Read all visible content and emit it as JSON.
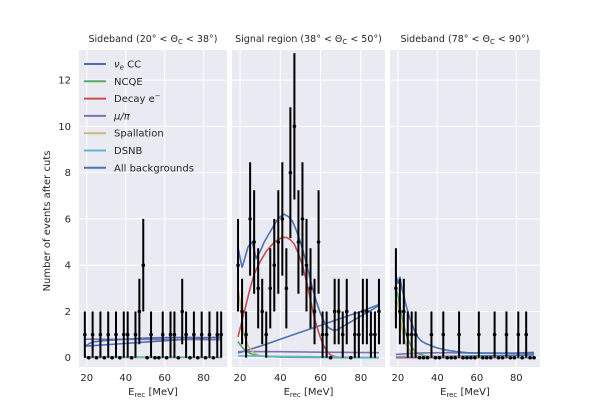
{
  "chart_data": {
    "type": "scatter",
    "ylabel": "Number of events after cuts",
    "ylim": [
      -0.4,
      13.3
    ],
    "yticks": [
      0,
      2,
      4,
      6,
      8,
      10,
      12
    ],
    "grid": true,
    "legend_position": "top-left",
    "colors": {
      "nue_cc": "#4c72b0",
      "ncqe": "#55a868",
      "decay_e": "#c44e52",
      "mu_pi": "#8172b2",
      "spallation": "#ccb974",
      "dsnb": "#64b5cd",
      "all_backgrounds": "#4c72b0"
    },
    "legend": [
      {
        "key": "nue_cc",
        "label": "νe CC",
        "label_main": "ν",
        "label_sub": "e",
        "label_rest": " CC"
      },
      {
        "key": "ncqe",
        "label": "NCQE",
        "label_main": "NCQE",
        "label_sub": "",
        "label_rest": ""
      },
      {
        "key": "decay_e",
        "label": "Decay e⁻",
        "label_main": "Decay e",
        "label_sub": "",
        "label_rest": "",
        "label_sup": "−"
      },
      {
        "key": "mu_pi",
        "label": "μ/π",
        "label_main": "μ/π",
        "label_sub": "",
        "label_rest": ""
      },
      {
        "key": "spallation",
        "label": "Spallation",
        "label_main": "Spallation",
        "label_sub": "",
        "label_rest": ""
      },
      {
        "key": "dsnb",
        "label": "DSNB",
        "label_main": "DSNB",
        "label_sub": "",
        "label_rest": ""
      },
      {
        "key": "all_backgrounds",
        "label": "All backgrounds",
        "label_main": "All backgrounds",
        "label_sub": "",
        "label_rest": ""
      }
    ],
    "panels": [
      {
        "title": "Sideband (20° < ΘC < 38°)",
        "title_pre": "Sideband (20",
        "title_mid1": "° < Θ",
        "title_sub": "C",
        "title_mid2": " < 38",
        "title_post": "°)",
        "xlabel": "Erec [MeV]",
        "xlabel_main": "E",
        "xlabel_sub": "rec",
        "xlabel_rest": " [MeV]",
        "xlim": [
          16,
          92
        ],
        "xticks": [
          20,
          40,
          60,
          80
        ],
        "x": [
          19,
          21,
          23,
          25,
          27,
          29,
          31,
          33,
          35,
          37,
          39,
          41,
          43,
          45,
          47,
          49,
          51,
          53,
          55,
          57,
          59,
          61,
          63,
          65,
          67,
          69,
          71,
          73,
          75,
          77,
          79,
          81,
          83,
          85,
          87,
          89
        ],
        "y": [
          1,
          0,
          1,
          0,
          1,
          0,
          1,
          0,
          1,
          0,
          1,
          1,
          0,
          1,
          2,
          4,
          0,
          1,
          0,
          0,
          1,
          0,
          1,
          1,
          0,
          2,
          1,
          0,
          1,
          0,
          1,
          0,
          1,
          0,
          1,
          1
        ],
        "curves": {
          "nue_cc": {
            "x": [
              19,
              89
            ],
            "y": [
              0.5,
              0.9
            ]
          },
          "ncqe": {
            "x": [
              19,
              89
            ],
            "y": [
              0.03,
              0.01
            ]
          },
          "decay_e": {
            "x": [
              19,
              89
            ],
            "y": [
              0.0,
              0.0
            ]
          },
          "mu_pi": {
            "x": [
              19,
              89
            ],
            "y": [
              0.8,
              0.78
            ]
          },
          "spallation": {
            "x": [
              19,
              89
            ],
            "y": [
              0.0,
              0.0
            ]
          },
          "dsnb": {
            "x": [
              19,
              89
            ],
            "y": [
              0.04,
              0.02
            ]
          },
          "all_backgrounds": {
            "x": [
              19,
              21,
              23,
              30,
              40,
              50,
              60,
              70,
              80,
              89
            ],
            "y": [
              0.5,
              0.6,
              0.68,
              0.75,
              0.8,
              0.85,
              0.87,
              0.88,
              0.87,
              0.86
            ]
          }
        }
      },
      {
        "title": "Signal region (38° < ΘC < 50°)",
        "title_pre": "Signal region (38",
        "title_mid1": "° < Θ",
        "title_sub": "C",
        "title_mid2": " < 50",
        "title_post": "°)",
        "xlabel": "Erec [MeV]",
        "xlabel_main": "E",
        "xlabel_sub": "rec",
        "xlabel_rest": " [MeV]",
        "xlim": [
          16,
          92
        ],
        "xticks": [
          20,
          40,
          60,
          80
        ],
        "x": [
          19,
          21,
          23,
          25,
          27,
          29,
          31,
          33,
          35,
          37,
          39,
          41,
          43,
          45,
          47,
          49,
          51,
          53,
          55,
          57,
          59,
          61,
          63,
          65,
          67,
          69,
          71,
          73,
          75,
          77,
          79,
          81,
          83,
          85,
          87,
          89
        ],
        "y": [
          4,
          2,
          1,
          6,
          5,
          3,
          2,
          1,
          3,
          4,
          5,
          6,
          3,
          8,
          10,
          5,
          6,
          4,
          3,
          2,
          5,
          1,
          1,
          0,
          2,
          2,
          1,
          2,
          0,
          1,
          1,
          2,
          2,
          1,
          1,
          2
        ],
        "curves": {
          "nue_cc": {
            "x": [
              19,
              30,
              40,
              50,
              60,
              70,
              80,
              89
            ],
            "y": [
              0.2,
              0.5,
              0.8,
              1.1,
              1.4,
              1.7,
              2.0,
              2.3
            ]
          },
          "ncqe": {
            "x": [
              19,
              21,
              23,
              26,
              30,
              40,
              50,
              60,
              70,
              80,
              89
            ],
            "y": [
              0.7,
              0.45,
              0.28,
              0.15,
              0.07,
              0.03,
              0.02,
              0.01,
              0.0,
              0.0,
              0.0
            ]
          },
          "decay_e": {
            "x": [
              19,
              21,
              23,
              25,
              27,
              29,
              31,
              33,
              35,
              37,
              39,
              41,
              43,
              45,
              47,
              49,
              51,
              53,
              55,
              57,
              59,
              61,
              63,
              65,
              67,
              69
            ],
            "y": [
              0.9,
              1.6,
              2.3,
              3.0,
              3.6,
              4.0,
              4.3,
              4.6,
              4.8,
              5.0,
              5.1,
              5.2,
              5.2,
              5.1,
              4.9,
              4.5,
              4.0,
              3.3,
              2.5,
              1.7,
              1.1,
              0.6,
              0.3,
              0.12,
              0.05,
              0.02
            ]
          },
          "mu_pi": {
            "x": [
              19,
              40,
              60,
              89
            ],
            "y": [
              0.27,
              0.26,
              0.24,
              0.22
            ]
          },
          "spallation": {
            "x": [
              19,
              20,
              21,
              22,
              24,
              27,
              30,
              35
            ],
            "y": [
              3.0,
              2.4,
              1.6,
              1.0,
              0.5,
              0.2,
              0.08,
              0.02
            ]
          },
          "dsnb": {
            "x": [
              19,
              30,
              40,
              50,
              60,
              70,
              80,
              89
            ],
            "y": [
              0.08,
              0.07,
              0.06,
              0.05,
              0.04,
              0.03,
              0.02,
              0.02
            ]
          },
          "all_backgrounds": {
            "x": [
              19,
              20,
              21,
              22,
              24,
              26,
              28,
              30,
              32,
              34,
              36,
              38,
              40,
              42,
              44,
              46,
              48,
              50,
              52,
              54,
              56,
              58,
              60,
              62,
              64,
              66,
              68,
              70,
              72,
              74,
              76,
              78,
              80,
              82,
              84,
              86,
              88,
              89
            ],
            "y": [
              4.8,
              4.3,
              3.9,
              4.2,
              4.8,
              5.0,
              4.3,
              4.6,
              5.0,
              5.3,
              5.6,
              5.9,
              6.1,
              6.2,
              6.1,
              5.9,
              5.5,
              5.0,
              4.4,
              3.7,
              3.0,
              2.4,
              1.9,
              1.5,
              1.3,
              1.2,
              1.2,
              1.3,
              1.4,
              1.5,
              1.6,
              1.7,
              1.8,
              1.9,
              2.0,
              2.1,
              2.2,
              2.3
            ]
          }
        }
      },
      {
        "title": "Sideband (78° < ΘC < 90°)",
        "title_pre": "Sideband (78",
        "title_mid1": "° < Θ",
        "title_sub": "C",
        "title_mid2": " < 90",
        "title_post": "°)",
        "xlabel": "Erec [MeV]",
        "xlabel_main": "E",
        "xlabel_sub": "rec",
        "xlabel_rest": " [MeV]",
        "xlim": [
          16,
          92
        ],
        "xticks": [
          20,
          40,
          60,
          80
        ],
        "x": [
          19,
          21,
          23,
          25,
          27,
          29,
          31,
          33,
          35,
          37,
          39,
          41,
          43,
          45,
          47,
          49,
          51,
          53,
          55,
          57,
          59,
          61,
          63,
          65,
          67,
          69,
          71,
          73,
          75,
          77,
          79,
          81,
          83,
          85,
          87,
          89
        ],
        "y": [
          3,
          2,
          2,
          1,
          1,
          1,
          0,
          0,
          0,
          1,
          0,
          0,
          1,
          0,
          0,
          0,
          1,
          0,
          0,
          0,
          0,
          1,
          0,
          0,
          0,
          1,
          0,
          0,
          1,
          0,
          0,
          1,
          0,
          1,
          0,
          0
        ],
        "curves": {
          "nue_cc": {
            "x": [
              19,
              89
            ],
            "y": [
              0.03,
              0.12
            ]
          },
          "ncqe": {
            "x": [
              19,
              20,
              21,
              22,
              23,
              24,
              25,
              27,
              29,
              31,
              34,
              38,
              45,
              60,
              89
            ],
            "y": [
              3.0,
              2.7,
              2.2,
              1.8,
              1.4,
              1.05,
              0.8,
              0.45,
              0.25,
              0.15,
              0.08,
              0.04,
              0.02,
              0.01,
              0.0
            ]
          },
          "decay_e": {
            "x": [
              19,
              89
            ],
            "y": [
              0.0,
              0.0
            ]
          },
          "mu_pi": {
            "x": [
              19,
              30,
              40,
              60,
              89
            ],
            "y": [
              0.15,
              0.2,
              0.22,
              0.2,
              0.18
            ]
          },
          "spallation": {
            "x": [
              19,
              20,
              21,
              22,
              23,
              24,
              26,
              28,
              31,
              35
            ],
            "y": [
              2.6,
              2.3,
              1.8,
              1.3,
              0.9,
              0.6,
              0.3,
              0.15,
              0.05,
              0.01
            ]
          },
          "dsnb": {
            "x": [
              19,
              30,
              40,
              50,
              60,
              70,
              80,
              89
            ],
            "y": [
              0.06,
              0.05,
              0.04,
              0.04,
              0.03,
              0.03,
              0.02,
              0.02
            ]
          },
          "all_backgrounds": {
            "x": [
              19,
              20,
              21,
              22,
              23,
              24,
              25,
              26,
              27,
              28,
              29,
              30,
              31,
              32,
              34,
              36,
              38,
              40,
              45,
              50,
              55,
              60,
              65,
              70,
              75,
              80,
              85,
              89
            ],
            "y": [
              3.6,
              3.2,
              3.5,
              3.0,
              2.7,
              2.3,
              2.0,
              1.7,
              1.5,
              1.25,
              1.05,
              0.9,
              0.8,
              0.72,
              0.62,
              0.55,
              0.48,
              0.42,
              0.32,
              0.26,
              0.22,
              0.2,
              0.2,
              0.2,
              0.2,
              0.2,
              0.22,
              0.23
            ]
          }
        }
      }
    ]
  }
}
